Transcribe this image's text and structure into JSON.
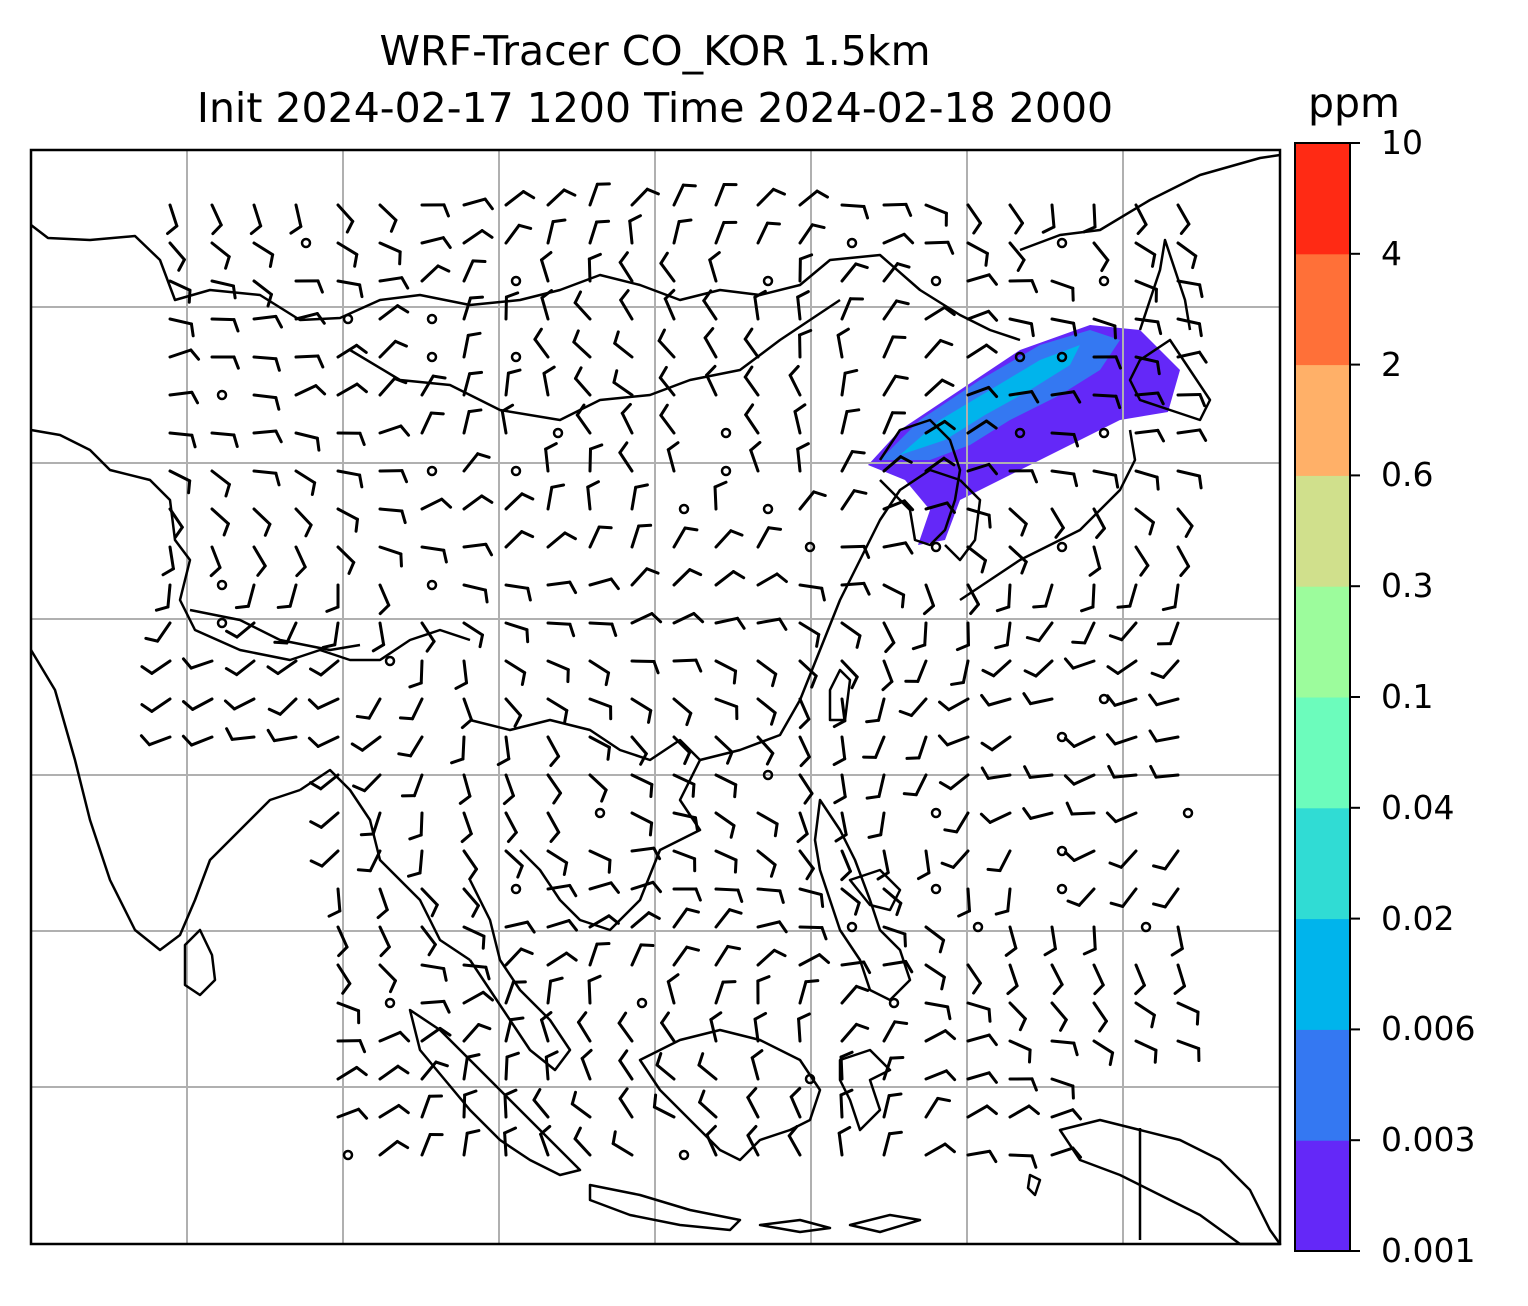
{
  "title": {
    "line1": "WRF-Tracer CO_KOR 1.5km",
    "line2": "Init 2024-02-17 1200 Time 2024-02-18 2000"
  },
  "colorbar": {
    "unit": "ppm",
    "ticks": [
      "0.001",
      "0.003",
      "0.006",
      "0.02",
      "0.04",
      "0.1",
      "0.3",
      "0.6",
      "2",
      "4",
      "10"
    ],
    "colors": [
      "#6428f8",
      "#3478f2",
      "#00b4ec",
      "#30dcd4",
      "#6cfcbc",
      "#9cfc9c",
      "#d0e08c",
      "#ffb068",
      "#ff7038",
      "#ff2a14"
    ]
  },
  "map": {
    "gridlines": "on",
    "gridline_color": "#b0b0b0",
    "coastline_color": "#000000",
    "field": "CO tracer concentration",
    "wind_symbols": "wind barbs and calm circles"
  }
}
